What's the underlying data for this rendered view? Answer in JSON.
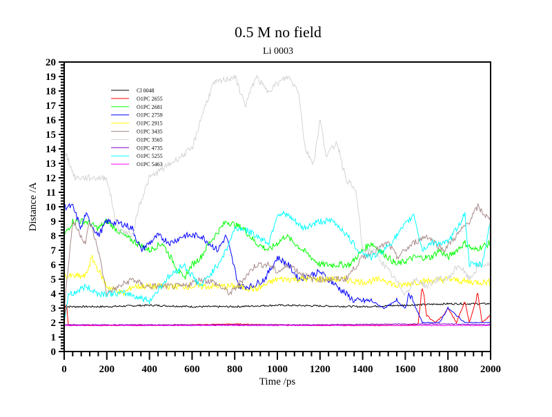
{
  "chart_data": {
    "type": "line",
    "title": "0.5 M no field",
    "subtitle": "Li 0003",
    "xlabel": "Time /ps",
    "ylabel": "Distance /A",
    "xlim": [
      0,
      2000
    ],
    "ylim": [
      0,
      20
    ],
    "xticks": [
      0,
      200,
      400,
      600,
      800,
      1000,
      1200,
      1400,
      1600,
      1800,
      2000
    ],
    "yticks": [
      0,
      1,
      2,
      3,
      4,
      5,
      6,
      7,
      8,
      9,
      10,
      11,
      12,
      13,
      14,
      15,
      16,
      17,
      18,
      19,
      20
    ],
    "grid": false,
    "legend_position": "top-left",
    "series": [
      {
        "name": "Cl 0048",
        "color": "#000000",
        "x": [
          0,
          200,
          400,
          600,
          800,
          1000,
          1200,
          1400,
          1600,
          1800,
          2000
        ],
        "y": [
          3.1,
          3.1,
          3.2,
          3.1,
          3.1,
          3.2,
          3.15,
          3.1,
          3.2,
          3.3,
          3.3
        ]
      },
      {
        "name": "O1PC 2655",
        "color": "#ff0000",
        "x": [
          0,
          10,
          20,
          100,
          400,
          800,
          1200,
          1600,
          1660,
          1680,
          1700,
          1740,
          1780,
          1800,
          1840,
          1880,
          1900,
          1940,
          1960,
          2000
        ],
        "y": [
          1.8,
          3.5,
          1.8,
          1.8,
          1.8,
          1.9,
          1.8,
          1.8,
          1.9,
          4.5,
          2.5,
          2.0,
          2.5,
          3.0,
          2.0,
          3.5,
          2.0,
          4.0,
          2.0,
          2.5
        ]
      },
      {
        "name": "O1PC 2681",
        "color": "#00ff00",
        "x": [
          0,
          40,
          100,
          160,
          200,
          280,
          340,
          400,
          460,
          520,
          560,
          600,
          640,
          680,
          760,
          840,
          900,
          960,
          1040,
          1080,
          1120,
          1200,
          1280,
          1340,
          1400,
          1440,
          1520,
          1560,
          1640,
          1720,
          1760,
          1800,
          1880,
          1920,
          2000
        ],
        "y": [
          8,
          9,
          9,
          8.5,
          9,
          8,
          7.5,
          7,
          7.5,
          6,
          5,
          6,
          6.5,
          7.5,
          9,
          8.5,
          7.5,
          7,
          8,
          7.5,
          7,
          6,
          6,
          6,
          7,
          7.5,
          6.5,
          6,
          6.5,
          6.5,
          7,
          6.5,
          7.5,
          7,
          7.5
        ]
      },
      {
        "name": "O1PC 2759",
        "color": "#0000ff",
        "x": [
          0,
          40,
          80,
          100,
          160,
          200,
          280,
          320,
          360,
          440,
          500,
          560,
          640,
          720,
          760,
          820,
          880,
          940,
          1000,
          1050,
          1100,
          1200,
          1280,
          1360,
          1440,
          1500,
          1560,
          1600,
          1620,
          1680,
          1760,
          1800,
          1880,
          2000
        ],
        "y": [
          10,
          10,
          8.5,
          9.5,
          8,
          9,
          8.8,
          8.5,
          7,
          8,
          7.5,
          8,
          8,
          7,
          8,
          4.5,
          4.5,
          5,
          6.5,
          6,
          5,
          5.5,
          4.5,
          3.5,
          3.5,
          3,
          3.5,
          3,
          4,
          2,
          2,
          3,
          2,
          2
        ]
      },
      {
        "name": "O1PC 2915",
        "color": "#ffff00",
        "x": [
          0,
          100,
          130,
          200,
          280,
          320,
          400,
          500,
          600,
          700,
          800,
          900,
          1000,
          1100,
          1200,
          1300,
          1400,
          1500,
          1560,
          1650,
          1800,
          1900,
          2000
        ],
        "y": [
          5.2,
          5.2,
          6.5,
          4.5,
          4,
          4.5,
          4.5,
          4.5,
          4.5,
          4.5,
          4.5,
          4.3,
          5,
          5,
          5,
          5,
          4.8,
          5,
          4.5,
          4.8,
          5,
          4.8,
          4.8
        ]
      },
      {
        "name": "O1PC 3435",
        "color": "#a88a8a",
        "x": [
          0,
          40,
          100,
          120,
          160,
          200,
          260,
          320,
          380,
          440,
          500,
          560,
          640,
          700,
          780,
          840,
          900,
          960,
          1000,
          1060,
          1100,
          1160,
          1240,
          1320,
          1400,
          1460,
          1520,
          1560,
          1640,
          1700,
          1780,
          1840,
          1900,
          1940,
          2000
        ],
        "y": [
          3,
          9,
          7.5,
          9,
          7,
          4,
          4.5,
          5,
          4.5,
          4.5,
          4.5,
          4.5,
          5,
          4.8,
          4,
          5,
          6,
          6,
          5.5,
          6,
          5.5,
          5,
          5,
          5,
          6.5,
          7,
          7.5,
          6.5,
          7.5,
          8,
          7,
          8,
          9,
          10,
          9
        ]
      },
      {
        "name": "O1PC 3565",
        "color": "#d3d3d3",
        "x": [
          0,
          50,
          200,
          250,
          320,
          350,
          400,
          500,
          600,
          650,
          700,
          800,
          850,
          900,
          950,
          1050,
          1100,
          1130,
          1170,
          1200,
          1230,
          1280,
          1320,
          1370,
          1400,
          1450,
          1500,
          1550,
          1600,
          1650,
          1700,
          1750,
          1800,
          1850,
          1900,
          1950,
          2000
        ],
        "y": [
          14,
          12,
          12,
          8.5,
          8,
          10,
          12,
          13,
          14,
          16.5,
          18.5,
          19,
          17,
          19,
          18,
          19,
          18,
          14,
          13,
          16,
          13.5,
          14.5,
          12,
          11,
          7,
          7,
          6,
          5,
          4,
          5,
          4.5,
          5,
          5,
          6,
          5,
          6,
          6
        ]
      },
      {
        "name": "O1PC 4735",
        "color": "#8000c0",
        "x": [
          0,
          400,
          800,
          1200,
          1600,
          1800,
          2000
        ],
        "y": [
          1.85,
          1.85,
          1.85,
          1.85,
          1.9,
          1.9,
          1.85
        ]
      },
      {
        "name": "O1PC 5255",
        "color": "#00ffff",
        "x": [
          0,
          20,
          40,
          100,
          160,
          240,
          300,
          400,
          480,
          560,
          640,
          720,
          760,
          800,
          840,
          900,
          960,
          1000,
          1040,
          1080,
          1120,
          1200,
          1260,
          1300,
          1380,
          1440,
          1500,
          1560,
          1640,
          1680,
          1720,
          1800,
          1880,
          1900,
          1960,
          2000
        ],
        "y": [
          2,
          4,
          4,
          4.5,
          4,
          4,
          4,
          3.5,
          5,
          6,
          4.5,
          6,
          7,
          8.5,
          8.5,
          8,
          7.5,
          9.5,
          9.5,
          9,
          8.5,
          9,
          9,
          8.5,
          7,
          6.5,
          7,
          8,
          9.5,
          7,
          7.5,
          7.5,
          9.5,
          6,
          6,
          9
        ]
      },
      {
        "name": "O1PC 5463",
        "color": "#ff00ff",
        "x": [
          0,
          500,
          1000,
          1500,
          2000
        ],
        "y": [
          1.8,
          1.8,
          1.8,
          1.8,
          1.8
        ]
      }
    ]
  }
}
